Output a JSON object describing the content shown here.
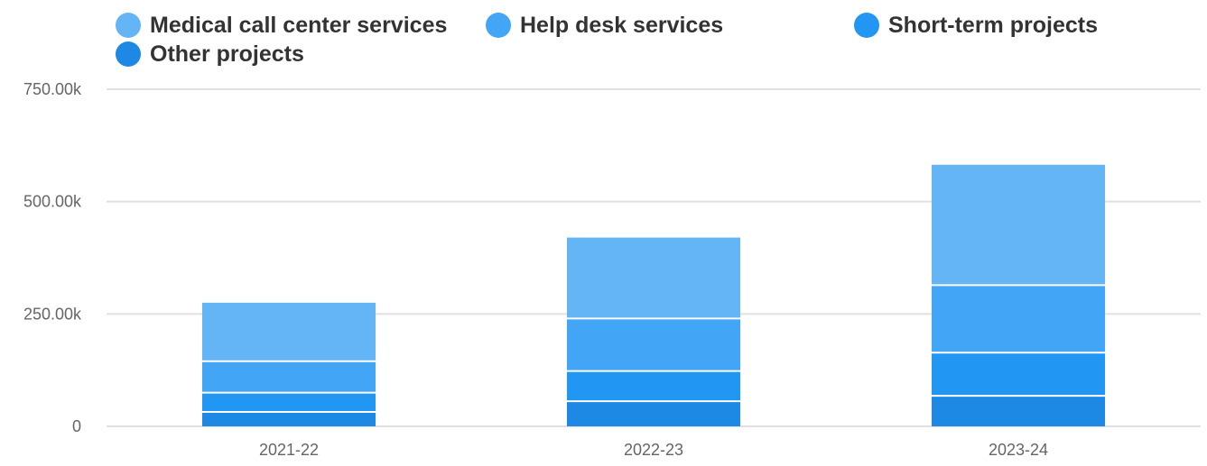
{
  "chart_data": {
    "type": "bar",
    "stacked": true,
    "categories": [
      "2021-22",
      "2022-23",
      "2023-24"
    ],
    "series": [
      {
        "name": "Other projects",
        "color": "#1e88e5",
        "values": [
          32000,
          56000,
          68000
        ]
      },
      {
        "name": "Short-term projects",
        "color": "#2196f3",
        "values": [
          43000,
          67000,
          96000
        ]
      },
      {
        "name": "Help desk services",
        "color": "#42a5f5",
        "values": [
          70000,
          117000,
          150000
        ]
      },
      {
        "name": "Medical call center services",
        "color": "#64b5f6",
        "values": [
          130000,
          180000,
          268000
        ]
      }
    ],
    "legend_order": [
      "Medical call center services",
      "Help desk services",
      "Short-term projects",
      "Other projects"
    ],
    "ylim": [
      0,
      750000
    ],
    "yticks": [
      {
        "value": 0,
        "label": "0"
      },
      {
        "value": 250000,
        "label": "250.00k"
      },
      {
        "value": 500000,
        "label": "500.00k"
      },
      {
        "value": 750000,
        "label": "750.00k"
      }
    ],
    "grid": true,
    "legend_position": "top"
  }
}
